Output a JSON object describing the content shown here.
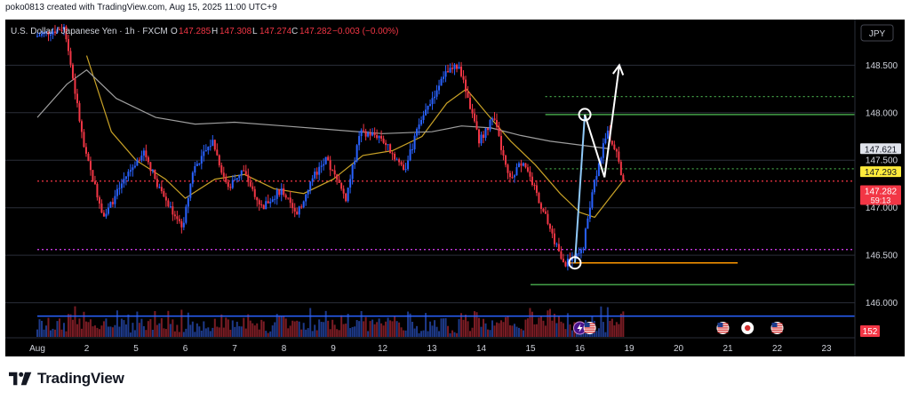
{
  "header": {
    "text": "poko0813 created with TradingView.com, Aug 15, 2025 11:00 UTC+9"
  },
  "footer": {
    "brand": "TradingView"
  },
  "currency_button": "JPY",
  "chart_data": {
    "type": "candlestick",
    "symbol_line": {
      "title": "U.S. Dollar / Japanese Yen · 1h · FXCM",
      "o_label": "O",
      "o_value": "147.285",
      "h_label": "H",
      "h_value": "147.308",
      "l_label": "L",
      "l_value": "147.274",
      "c_label": "C",
      "c_value": "147.282",
      "change": "−0.003 (−0.00%)"
    },
    "y_axis": {
      "ticks": [
        "148.500",
        "148.000",
        "147.500",
        "147.000",
        "146.500",
        "146.000"
      ],
      "tick_values": [
        148.5,
        148.0,
        147.5,
        147.0,
        146.5,
        146.0
      ],
      "range": [
        145.8,
        148.98
      ]
    },
    "x_axis": {
      "ticks": [
        "Aug",
        "2",
        "5",
        "6",
        "7",
        "8",
        "9",
        "12",
        "13",
        "14",
        "15",
        "16",
        "19",
        "20",
        "21",
        "22",
        "23"
      ]
    },
    "price_labels": [
      {
        "name": "ma-label",
        "value": "147.621",
        "bg": "#e0e3eb",
        "fg": "#131722"
      },
      {
        "name": "dotted-level-label",
        "value": "147.293",
        "bg": "#ffeb3b",
        "fg": "#131722"
      },
      {
        "name": "last-price-label",
        "value": "147.282",
        "countdown": "59:13",
        "bg": "#f23645",
        "fg": "#ffffff"
      }
    ],
    "volume_label": "152",
    "price_path": [
      [
        0,
        148.8
      ],
      [
        0.6,
        148.9
      ],
      [
        1.0,
        147.6
      ],
      [
        1.4,
        146.9
      ],
      [
        1.8,
        147.3
      ],
      [
        2.2,
        147.6
      ],
      [
        2.6,
        147.1
      ],
      [
        3.0,
        146.8
      ],
      [
        3.2,
        147.4
      ],
      [
        3.6,
        147.7
      ],
      [
        3.9,
        147.2
      ],
      [
        4.2,
        147.4
      ],
      [
        4.6,
        147.0
      ],
      [
        5.0,
        147.2
      ],
      [
        5.3,
        146.9
      ],
      [
        5.6,
        147.3
      ],
      [
        5.9,
        147.5
      ],
      [
        6.3,
        147.1
      ],
      [
        6.6,
        147.8
      ],
      [
        7.0,
        147.75
      ],
      [
        7.2,
        147.6
      ],
      [
        7.5,
        147.4
      ],
      [
        7.8,
        147.9
      ],
      [
        8.0,
        148.1
      ],
      [
        8.3,
        148.4
      ],
      [
        8.6,
        148.5
      ],
      [
        8.8,
        148.1
      ],
      [
        9.0,
        147.7
      ],
      [
        9.3,
        147.95
      ],
      [
        9.6,
        147.3
      ],
      [
        9.9,
        147.5
      ],
      [
        10.2,
        147.1
      ],
      [
        10.5,
        146.7
      ],
      [
        10.7,
        146.4
      ],
      [
        10.9,
        146.45
      ],
      [
        11.1,
        146.55
      ],
      [
        11.3,
        147.2
      ],
      [
        11.6,
        147.8
      ],
      [
        11.8,
        147.6
      ],
      [
        11.9,
        147.28
      ]
    ],
    "moving_averages": [
      {
        "name": "short-ma",
        "color": "#c9a227",
        "points": [
          [
            1.0,
            148.6
          ],
          [
            1.5,
            147.8
          ],
          [
            2.0,
            147.5
          ],
          [
            2.6,
            147.3
          ],
          [
            3.0,
            147.1
          ],
          [
            3.6,
            147.3
          ],
          [
            4.2,
            147.35
          ],
          [
            4.8,
            147.2
          ],
          [
            5.4,
            147.15
          ],
          [
            6.0,
            147.3
          ],
          [
            6.6,
            147.55
          ],
          [
            7.2,
            147.6
          ],
          [
            7.8,
            147.75
          ],
          [
            8.3,
            148.1
          ],
          [
            8.7,
            148.25
          ],
          [
            9.1,
            148.0
          ],
          [
            9.6,
            147.7
          ],
          [
            10.1,
            147.45
          ],
          [
            10.6,
            147.15
          ],
          [
            11.0,
            146.95
          ],
          [
            11.3,
            146.9
          ],
          [
            11.6,
            147.1
          ],
          [
            11.9,
            147.3
          ]
        ]
      },
      {
        "name": "long-ma",
        "color": "#9e9e9e",
        "points": [
          [
            0,
            147.95
          ],
          [
            0.6,
            148.3
          ],
          [
            1.0,
            148.45
          ],
          [
            1.6,
            148.15
          ],
          [
            2.4,
            147.95
          ],
          [
            3.2,
            147.88
          ],
          [
            4.0,
            147.9
          ],
          [
            5.0,
            147.86
          ],
          [
            6.0,
            147.82
          ],
          [
            7.0,
            147.78
          ],
          [
            8.0,
            147.8
          ],
          [
            8.6,
            147.86
          ],
          [
            9.2,
            147.84
          ],
          [
            9.8,
            147.76
          ],
          [
            10.4,
            147.7
          ],
          [
            11.0,
            147.66
          ],
          [
            11.6,
            147.62
          ]
        ]
      }
    ],
    "horizontal_levels": [
      {
        "name": "green-dotted-upper",
        "value": 148.17,
        "x_start": 10.3,
        "color": "#43a047",
        "style": "dotted"
      },
      {
        "name": "green-solid-upper",
        "value": 147.98,
        "x_start": 10.3,
        "color": "#43a047",
        "style": "solid"
      },
      {
        "name": "green-dotted-lower",
        "value": 147.41,
        "x_start": 10.3,
        "color": "#43a047",
        "style": "dotted"
      },
      {
        "name": "red-dotted-level",
        "value": 147.28,
        "x_start": 0,
        "color": "#f23645",
        "style": "dotted"
      },
      {
        "name": "magenta-dotted-level",
        "value": 146.56,
        "x_start": 0,
        "color": "#e040fb",
        "style": "dotted"
      },
      {
        "name": "orange-solid-level",
        "value": 146.42,
        "x_start": 10.8,
        "x_end": 14.2,
        "color": "#ff9800",
        "style": "solid"
      },
      {
        "name": "green-solid-lower",
        "value": 146.19,
        "x_start": 10.0,
        "color": "#43a047",
        "style": "solid"
      },
      {
        "name": "blue-solid-level",
        "value": 145.86,
        "x_start": 0,
        "color": "#2962ff",
        "style": "solid"
      }
    ],
    "annotation": {
      "low_point": [
        10.9,
        146.42
      ],
      "high_point": [
        11.1,
        147.98
      ],
      "pullback_point": [
        11.5,
        147.32
      ],
      "arrow_tip": [
        11.8,
        148.5
      ]
    },
    "events": [
      {
        "icon": "lightning-icon",
        "x": 11.0
      },
      {
        "icon": "us-flag-icon",
        "x": 11.2
      },
      {
        "icon": "us-flag-icon",
        "x": 13.9
      },
      {
        "icon": "jp-flag-icon",
        "x": 14.4
      },
      {
        "icon": "us-flag-icon",
        "x": 15.0
      }
    ],
    "colors": {
      "up": "#2962ff",
      "down": "#f23645",
      "background": "#000000",
      "grid": "#2a2e39"
    }
  }
}
